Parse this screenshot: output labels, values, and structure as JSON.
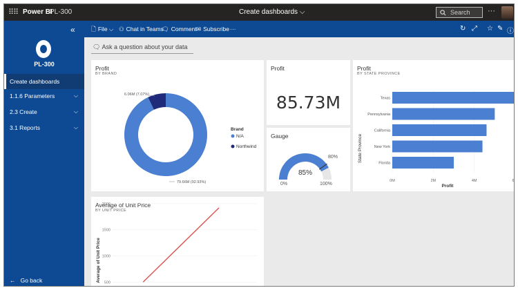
{
  "topbar": {
    "app_name": "Power BI",
    "workspace": "PL-300",
    "report_title": "Create dashboards",
    "search_placeholder": "Search",
    "more": "···"
  },
  "nav": {
    "workspace_name": "PL-300",
    "items": [
      {
        "label": "Create dashboards",
        "active": true
      },
      {
        "label": "1.1.6 Parameters"
      },
      {
        "label": "2.3 Create"
      },
      {
        "label": "3.1 Reports"
      }
    ],
    "go_back": "Go back"
  },
  "commands": {
    "file": "File",
    "chat": "Chat in Teams",
    "comment": "Comment",
    "subscribe": "Subscribe",
    "more": "···"
  },
  "qa": {
    "placeholder": "Ask a question about your data"
  },
  "tiles": {
    "profit_brand": {
      "title": "Profit",
      "subtitle": "BY BRAND",
      "legend_title": "Brand",
      "label_small": "6.06M (7.07%)",
      "label_large": "79.66M (92.93%)"
    },
    "profit_card": {
      "title": "Profit",
      "value": "85.73M"
    },
    "gauge": {
      "title": "Gauge",
      "value": "85%",
      "min": "0%",
      "max": "100%",
      "target": "80%"
    },
    "profit_state": {
      "title": "Profit",
      "subtitle": "BY STATE PROVINCE"
    },
    "avg_price": {
      "title": "Average of Unit Price",
      "subtitle": "BY UNIT PRICE"
    }
  },
  "chart_data": [
    {
      "type": "pie",
      "title": "Profit",
      "subtitle": "BY BRAND",
      "legend_title": "Brand",
      "categories": [
        "N/A",
        "Northwind"
      ],
      "values": [
        79.66,
        6.06
      ],
      "percents": [
        92.93,
        7.07
      ],
      "colors": [
        "#4a7fd1",
        "#1f2a7a"
      ],
      "legend_position": "right",
      "donut": true
    },
    {
      "type": "bar",
      "orientation": "horizontal",
      "title": "Profit",
      "subtitle": "BY STATE PROVINCE",
      "categories": [
        "Texas",
        "Pennsylvania",
        "California",
        "New York",
        "Florida"
      ],
      "values": [
        6.0,
        5.0,
        4.6,
        4.4,
        3.0
      ],
      "xlabel": "Profit",
      "ylabel": "State Province",
      "xticks": [
        "0M",
        "2M",
        "4M",
        "6"
      ],
      "xlim": [
        0,
        6
      ],
      "color": "#4a7fd1"
    },
    {
      "type": "line",
      "title": "Average of Unit Price",
      "subtitle": "BY UNIT PRICE",
      "ylabel": "Average of Unit Price",
      "yticks": [
        "2000",
        "1500",
        "1000",
        "500"
      ],
      "ylim": [
        400,
        2050
      ],
      "x": [
        560,
        1920
      ],
      "y": [
        500,
        1920
      ],
      "color": "#d9534f"
    }
  ],
  "gauge_data": {
    "value": 0.85,
    "target": 0.8,
    "color": "#4a7fd1"
  }
}
